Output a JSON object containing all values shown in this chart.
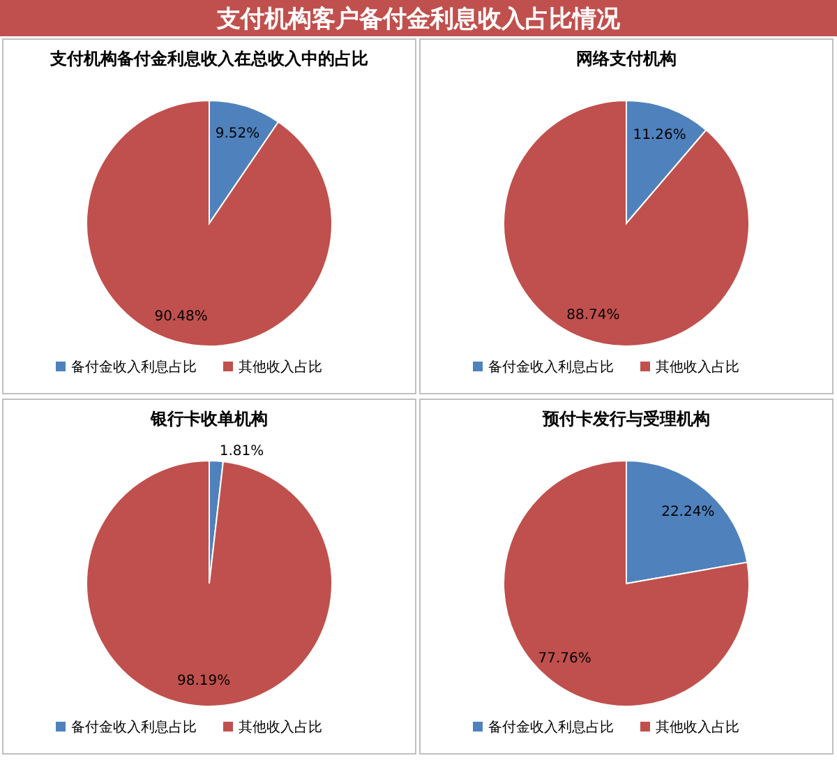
{
  "chart_data": [
    {
      "type": "other",
      "title": "支付机构客户备付金利息收入占比情况"
    },
    {
      "type": "pie",
      "title": "支付机构备付金利息收入在总收入中的占比",
      "categories": [
        "备付金收入利息占比",
        "其他收入占比"
      ],
      "values": [
        9.52,
        90.48
      ],
      "value_labels": [
        "9.52%",
        "90.48%"
      ],
      "colors": [
        "#4f81bd",
        "#c0504d"
      ],
      "legend": "bottom"
    },
    {
      "type": "pie",
      "title": "网络支付机构",
      "categories": [
        "备付金收入利息占比",
        "其他收入占比"
      ],
      "values": [
        11.26,
        88.74
      ],
      "value_labels": [
        "11.26%",
        "88.74%"
      ],
      "colors": [
        "#4f81bd",
        "#c0504d"
      ],
      "legend": "bottom"
    },
    {
      "type": "pie",
      "title": "银行卡收单机构",
      "categories": [
        "备付金收入利息占比",
        "其他收入占比"
      ],
      "values": [
        1.81,
        98.19
      ],
      "value_labels": [
        "1.81%",
        "98.19%"
      ],
      "colors": [
        "#4f81bd",
        "#c0504d"
      ],
      "legend": "bottom"
    },
    {
      "type": "pie",
      "title": "预付卡发行与受理机构",
      "categories": [
        "备付金收入利息占比",
        "其他收入占比"
      ],
      "values": [
        22.24,
        77.76
      ],
      "value_labels": [
        "22.24%",
        "77.76%"
      ],
      "colors": [
        "#4f81bd",
        "#c0504d"
      ],
      "legend": "bottom"
    }
  ]
}
